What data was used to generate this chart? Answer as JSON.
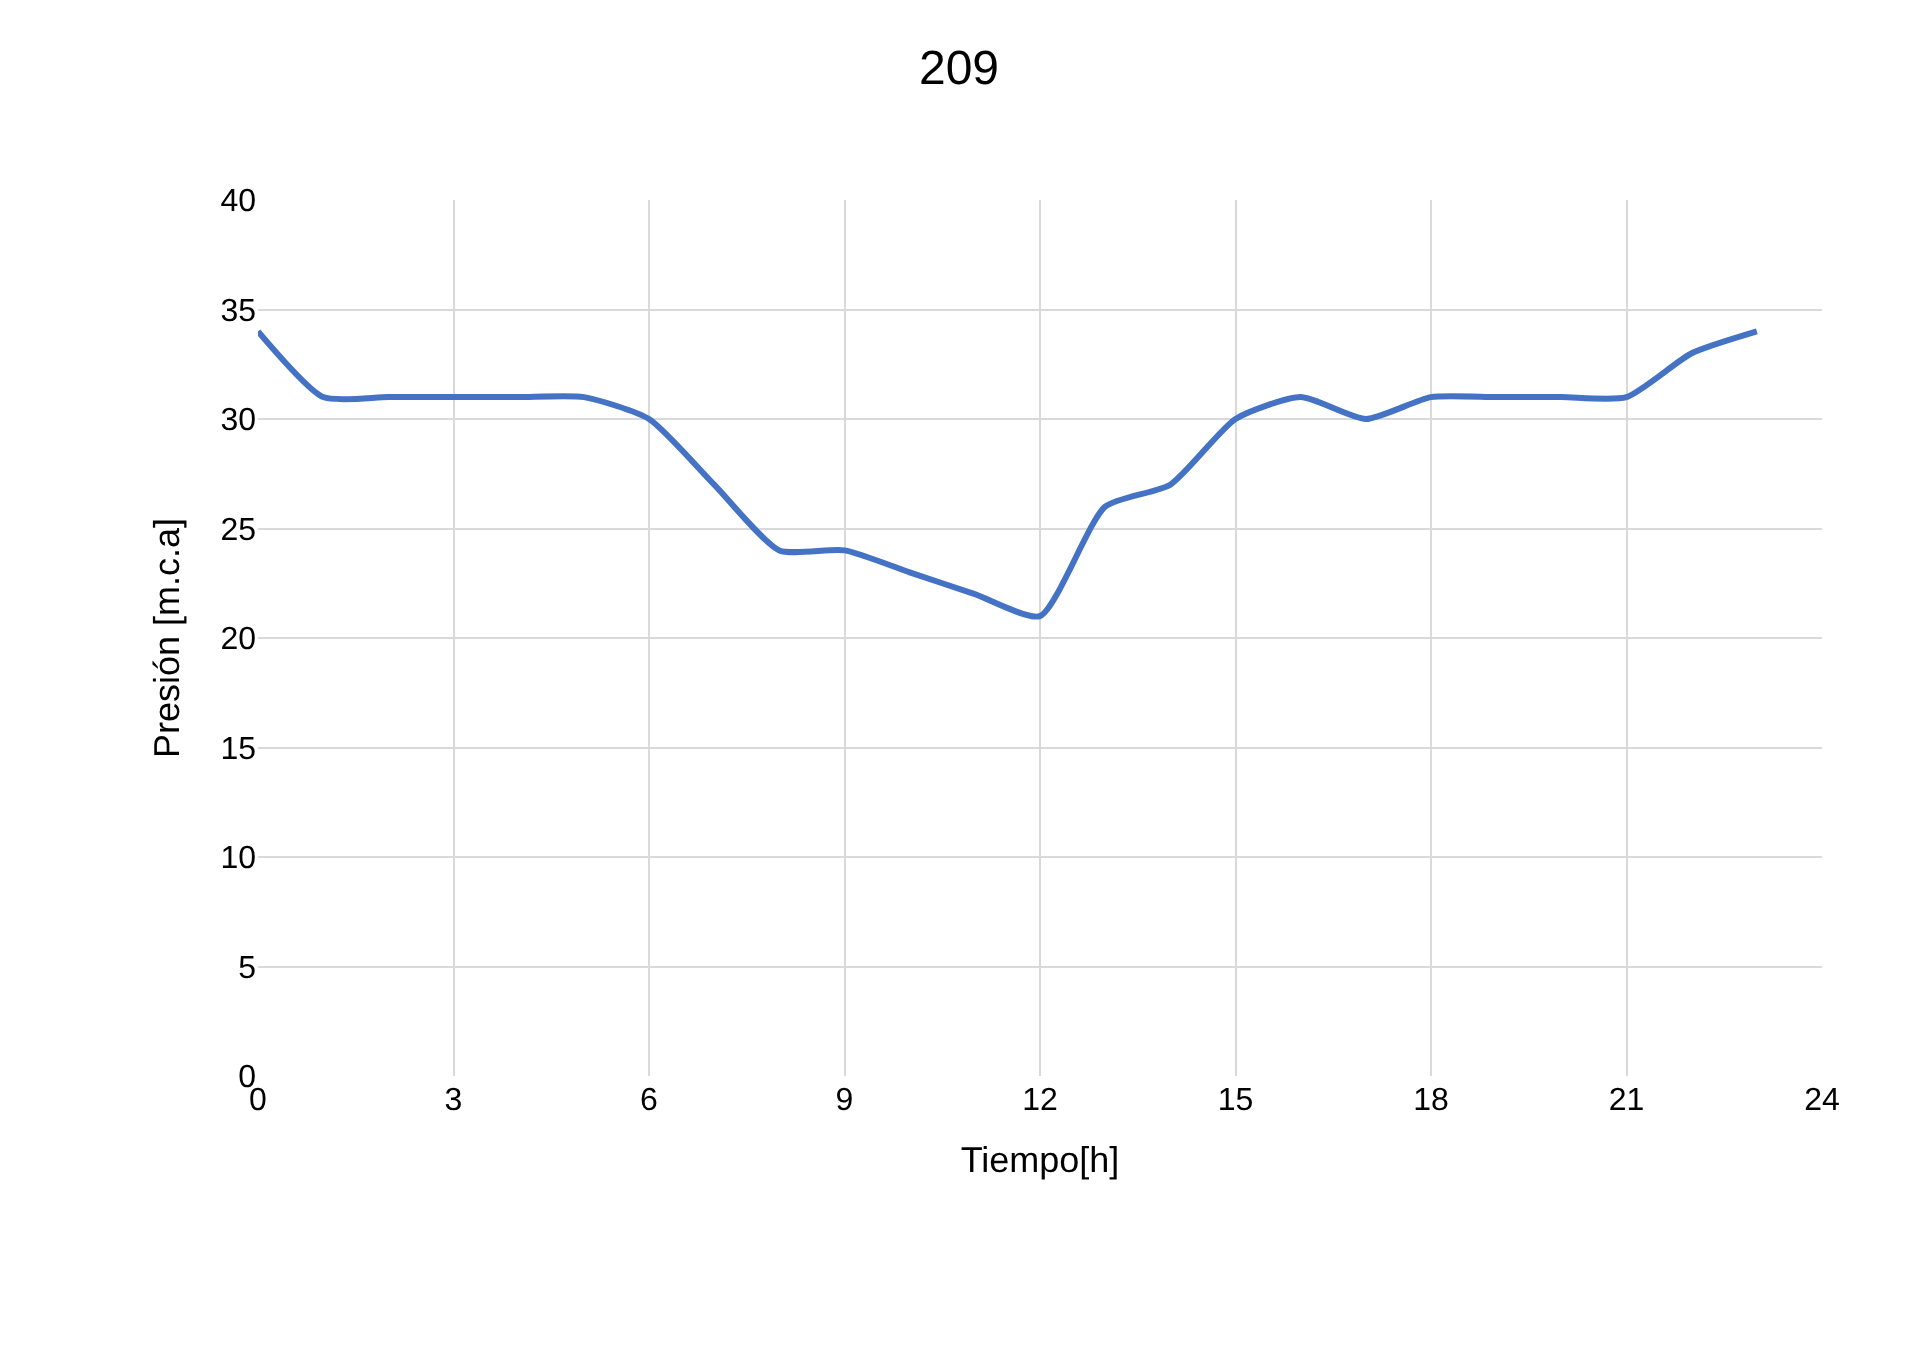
{
  "chart_data": {
    "type": "line",
    "title": "209",
    "xlabel": "Tiempo[h]",
    "ylabel": "Presión [m.c.a]",
    "x": [
      0,
      1,
      2,
      3,
      4,
      5,
      6,
      7,
      8,
      9,
      10,
      11,
      12,
      13,
      14,
      15,
      16,
      17,
      18,
      19,
      20,
      21,
      22,
      23
    ],
    "series": [
      {
        "color": "#4472c4",
        "values": [
          34,
          31,
          31,
          31,
          31,
          31,
          30,
          27,
          24,
          24,
          23,
          22,
          21,
          26,
          27,
          30,
          31,
          30,
          31,
          31,
          31,
          31,
          33,
          34
        ]
      }
    ],
    "xlim": [
      0,
      24
    ],
    "xticks": [
      0,
      3,
      6,
      9,
      12,
      15,
      18,
      21,
      24
    ],
    "ylim": [
      0,
      40
    ],
    "yticks": [
      0,
      5,
      10,
      15,
      20,
      25,
      30,
      35,
      40
    ],
    "grid": true,
    "marker": "none",
    "line_style": "solid"
  }
}
